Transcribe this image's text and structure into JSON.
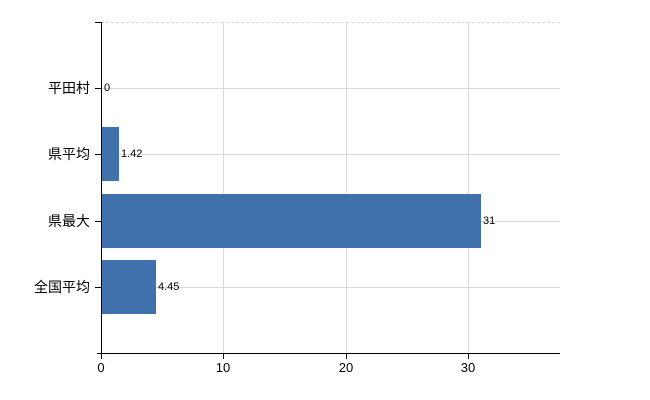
{
  "chart_data": {
    "type": "bar",
    "orientation": "horizontal",
    "title": "",
    "categories": [
      "平田村",
      "県平均",
      "県最大",
      "全国平均"
    ],
    "values": [
      0,
      1.42,
      31,
      4.45
    ],
    "value_labels": [
      "0",
      "1.42",
      "31",
      "4.45"
    ],
    "x_ticks": [
      0,
      10,
      20,
      30
    ],
    "x_tick_labels": [
      "0",
      "10",
      "20",
      "30"
    ],
    "xlim": [
      0,
      37.5
    ],
    "grid": true,
    "legend_position": "none",
    "colors": {
      "bar": "#4171ac",
      "gridline": "#d9d9d9",
      "axis": "#000000",
      "text": "#000000",
      "background": "#ffffff"
    }
  }
}
